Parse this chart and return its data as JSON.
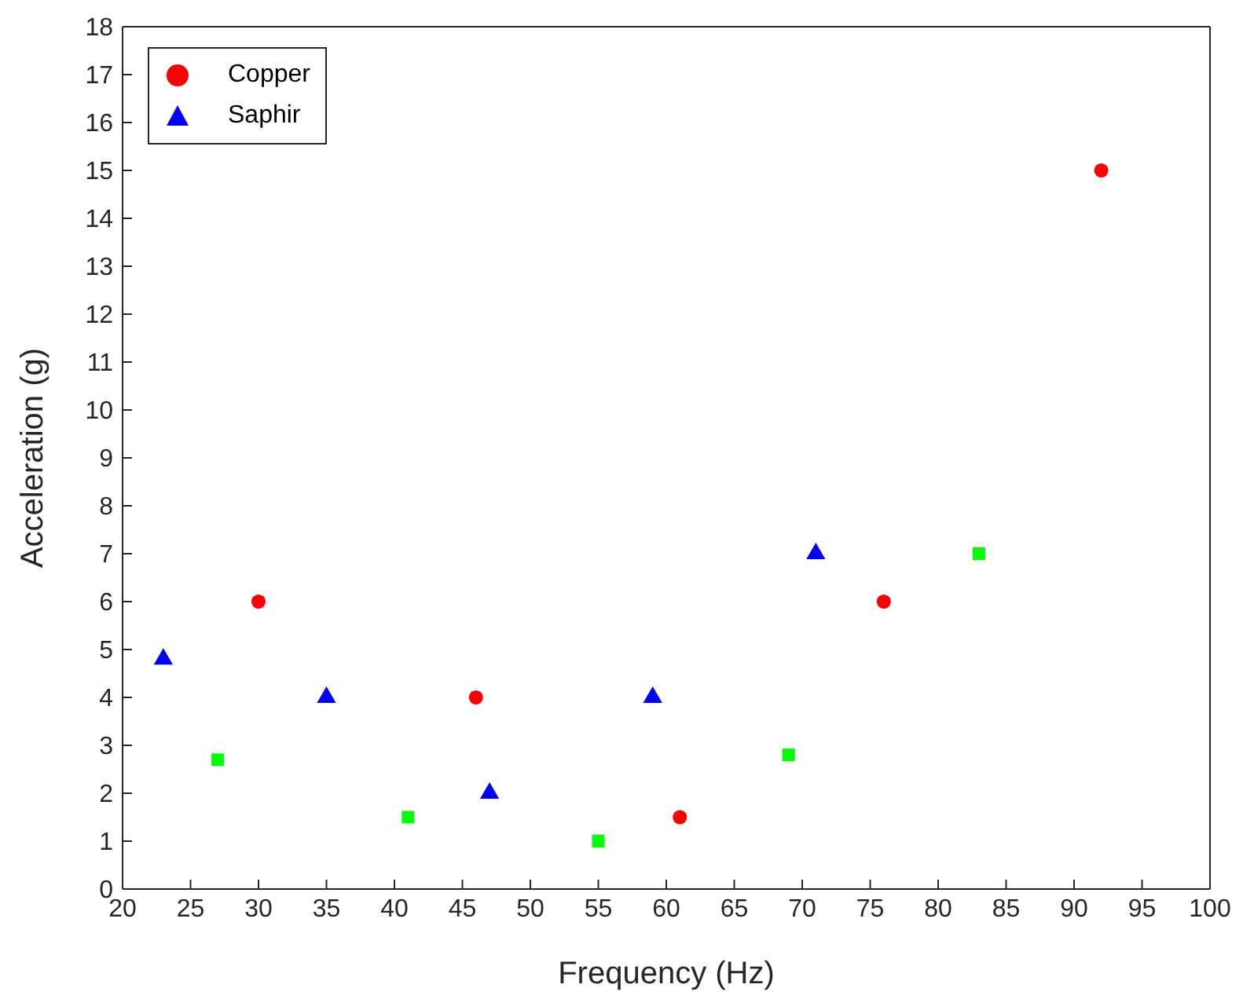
{
  "chart_data": {
    "type": "scatter",
    "xlabel": "Frequency (Hz)",
    "ylabel": "Acceleration (g)",
    "xlim": [
      20,
      100
    ],
    "xticks": [
      20,
      25,
      30,
      35,
      40,
      45,
      50,
      55,
      60,
      65,
      70,
      75,
      80,
      85,
      90,
      95,
      100
    ],
    "ylim": [
      0,
      18
    ],
    "yticks": [
      0,
      1,
      2,
      3,
      4,
      5,
      6,
      7,
      8,
      9,
      10,
      11,
      12,
      13,
      14,
      15,
      16,
      17,
      18
    ],
    "legend": "top left",
    "series": [
      {
        "name": "Copper",
        "color": "#ff0000",
        "marker": "circle",
        "x": [
          30,
          46,
          61,
          76,
          92
        ],
        "values": [
          6,
          4,
          1.5,
          6,
          15
        ]
      },
      {
        "color": "#00ff00",
        "marker": "square",
        "x": [
          27,
          41,
          55,
          69,
          83
        ],
        "values": [
          2.7,
          1.5,
          1,
          2.8,
          7
        ]
      },
      {
        "name": "Saphir",
        "color": "#0000ff",
        "marker": "triangle",
        "x": [
          23,
          35,
          47,
          59,
          71
        ],
        "values": [
          4.8,
          4,
          2,
          4,
          7
        ]
      }
    ]
  }
}
